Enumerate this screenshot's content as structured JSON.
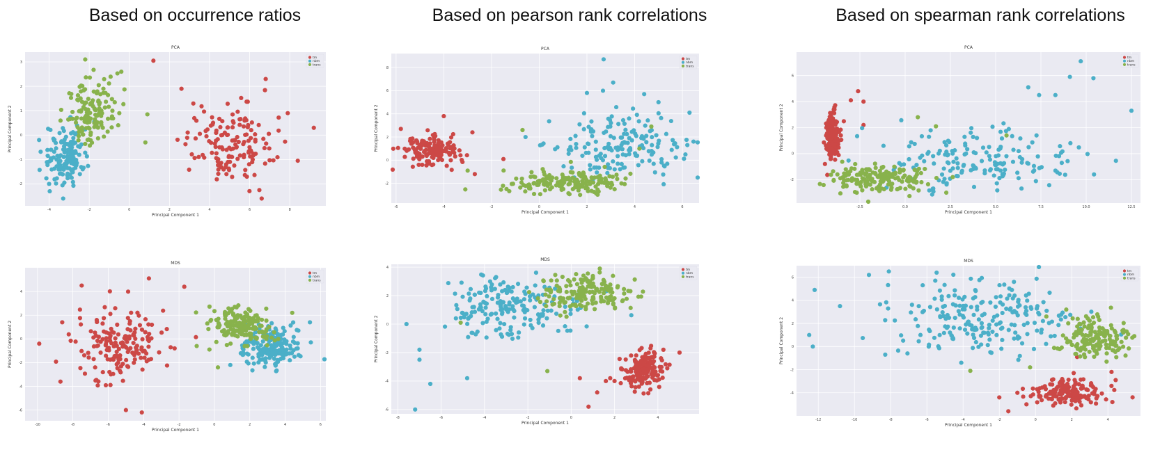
{
  "columns": [
    "Based on occurrence ratios",
    "Based on pearson rank correlations",
    "Based on spearman rank correlations"
  ],
  "colors": {
    "tm": "#cc4846",
    "nbm": "#4bafc8",
    "trans": "#88b24c",
    "plot_bg": "#eaeaf2",
    "grid": "#ffffff"
  },
  "chart_data": [
    {
      "type": "scatter",
      "title": "PCA",
      "xlabel": "Principal Component 1",
      "ylabel": "Principal Component 2",
      "xlim": [
        -5.2,
        9.8
      ],
      "ylim": [
        -2.9,
        3.4
      ],
      "xticks": [
        -4,
        -2,
        0,
        2,
        4,
        6,
        8
      ],
      "yticks": [
        -2,
        -1,
        0,
        1,
        2,
        3
      ],
      "legend": [
        "tm",
        "nbm",
        "trans"
      ],
      "legend_position": "top-right",
      "series": [
        {
          "name": "tm",
          "color": "#cc4846",
          "clusters": [
            {
              "cx": 4.9,
              "cy": -0.3,
              "sx": 1.1,
              "sy": 0.8,
              "n": 150
            }
          ],
          "points": [
            [
              1.2,
              3.05
            ],
            [
              2.6,
              1.9
            ],
            [
              6.6,
              -2.6
            ],
            [
              9.2,
              0.3
            ],
            [
              8.4,
              -1.05
            ],
            [
              7.9,
              0.9
            ],
            [
              6.8,
              2.3
            ]
          ]
        },
        {
          "name": "nbm",
          "color": "#4bafc8",
          "clusters": [
            {
              "cx": -3.1,
              "cy": -0.9,
              "sx": 0.5,
              "sy": 0.6,
              "n": 140
            }
          ],
          "points": [
            [
              -4.5,
              -0.2
            ],
            [
              -3.3,
              -2.6
            ],
            [
              -4.0,
              -2.0
            ]
          ]
        },
        {
          "name": "trans",
          "color": "#88b24c",
          "clusters": [
            {
              "cx": -1.9,
              "cy": 1.0,
              "sx": 0.65,
              "sy": 0.65,
              "n": 140
            }
          ],
          "points": [
            [
              -2.2,
              3.1
            ],
            [
              -0.5,
              0.9
            ],
            [
              0.8,
              -0.3
            ],
            [
              0.9,
              0.85
            ],
            [
              -0.4,
              2.6
            ]
          ]
        }
      ]
    },
    {
      "type": "scatter",
      "title": "PCA",
      "xlabel": "Principal Component 1",
      "ylabel": "Principal Component 2",
      "xlim": [
        -6.2,
        6.7
      ],
      "ylim": [
        -3.7,
        9.2
      ],
      "xticks": [
        -6,
        -4,
        -2,
        0,
        2,
        4,
        6
      ],
      "yticks": [
        -2,
        0,
        2,
        4,
        6,
        8
      ],
      "legend": [
        "tm",
        "nbm",
        "trans"
      ],
      "legend_position": "top-right",
      "series": [
        {
          "name": "tm",
          "color": "#cc4846",
          "clusters": [
            {
              "cx": -4.6,
              "cy": 0.8,
              "sx": 0.6,
              "sy": 0.6,
              "n": 150
            }
          ],
          "points": [
            [
              -5.8,
              2.7
            ],
            [
              -4.0,
              3.8
            ],
            [
              -2.8,
              2.4
            ],
            [
              -1.5,
              0.1
            ],
            [
              -2.7,
              -1.2
            ]
          ]
        },
        {
          "name": "nbm",
          "color": "#4bafc8",
          "clusters": [
            {
              "cx": 3.3,
              "cy": 1.2,
              "sx": 1.4,
              "sy": 1.3,
              "n": 170
            }
          ],
          "points": [
            [
              2.7,
              8.7
            ],
            [
              3.1,
              6.7
            ],
            [
              2.0,
              5.8
            ],
            [
              4.4,
              5.7
            ],
            [
              5.0,
              5.0
            ],
            [
              6.3,
              4.1
            ]
          ]
        },
        {
          "name": "trans",
          "color": "#88b24c",
          "clusters": [
            {
              "cx": 1.2,
              "cy": -1.9,
              "sx": 1.3,
              "sy": 0.5,
              "n": 180
            }
          ],
          "points": [
            [
              -0.7,
              2.6
            ],
            [
              -3.0,
              -0.9
            ],
            [
              4.2,
              1.0
            ],
            [
              4.7,
              2.9
            ]
          ]
        }
      ]
    },
    {
      "type": "scatter",
      "title": "PCA",
      "xlabel": "Principal Component 1",
      "ylabel": "Principal Component 2",
      "xlim": [
        -6.0,
        13.0
      ],
      "ylim": [
        -3.8,
        7.8
      ],
      "xticks": [
        -2.5,
        0.0,
        2.5,
        5.0,
        7.5,
        10.0,
        12.5
      ],
      "yticks": [
        -2,
        0,
        2,
        4,
        6
      ],
      "legend": [
        "tm",
        "nbm",
        "trans"
      ],
      "legend_position": "top-right",
      "series": [
        {
          "name": "tm",
          "color": "#cc4846",
          "clusters": [
            {
              "cx": -4.0,
              "cy": 1.5,
              "sx": 0.2,
              "sy": 0.9,
              "n": 150
            }
          ],
          "points": [
            [
              -2.6,
              4.8
            ],
            [
              -2.3,
              4.0
            ],
            [
              -2.3,
              2.2
            ],
            [
              -3.0,
              4.1
            ]
          ]
        },
        {
          "name": "nbm",
          "color": "#4bafc8",
          "clusters": [
            {
              "cx": 3.8,
              "cy": -0.5,
              "sx": 2.5,
              "sy": 1.1,
              "n": 170
            }
          ],
          "points": [
            [
              9.7,
              7.1
            ],
            [
              10.4,
              5.8
            ],
            [
              9.1,
              5.9
            ],
            [
              8.3,
              4.5
            ],
            [
              12.5,
              3.3
            ],
            [
              7.4,
              4.5
            ],
            [
              6.8,
              5.1
            ]
          ]
        },
        {
          "name": "trans",
          "color": "#88b24c",
          "clusters": [
            {
              "cx": -1.4,
              "cy": -1.9,
              "sx": 1.3,
              "sy": 0.55,
              "n": 170
            }
          ],
          "points": [
            [
              0.7,
              2.8
            ],
            [
              1.7,
              2.1
            ],
            [
              5.6,
              1.4
            ],
            [
              -2.0,
              -1.2
            ]
          ]
        }
      ]
    },
    {
      "type": "scatter",
      "title": "MDS",
      "xlabel": "Principal Component 1",
      "ylabel": "Principal Component 2",
      "xlim": [
        -10.7,
        6.3
      ],
      "ylim": [
        -6.9,
        6.0
      ],
      "xticks": [
        -10,
        -8,
        -6,
        -4,
        -2,
        0,
        2,
        4,
        6
      ],
      "yticks": [
        -6,
        -4,
        -2,
        0,
        2,
        4
      ],
      "legend": [
        "tm",
        "nbm",
        "trans"
      ],
      "legend_position": "top-right",
      "series": [
        {
          "name": "tm",
          "color": "#cc4846",
          "clusters": [
            {
              "cx": -5.4,
              "cy": -0.4,
              "sx": 1.3,
              "sy": 1.5,
              "n": 170
            }
          ],
          "points": [
            [
              -9.9,
              -0.4
            ],
            [
              -8.7,
              -3.6
            ],
            [
              -4.1,
              -6.2
            ],
            [
              -5.0,
              -6.0
            ],
            [
              -3.7,
              5.1
            ],
            [
              -1.7,
              4.4
            ],
            [
              -7.5,
              4.5
            ],
            [
              -8.6,
              1.4
            ]
          ]
        },
        {
          "name": "nbm",
          "color": "#4bafc8",
          "clusters": [
            {
              "cx": 3.2,
              "cy": -0.7,
              "sx": 0.9,
              "sy": 0.9,
              "n": 190
            }
          ],
          "points": [
            [
              5.4,
              1.4
            ],
            [
              0.9,
              -2.2
            ]
          ]
        },
        {
          "name": "trans",
          "color": "#88b24c",
          "clusters": [
            {
              "cx": 1.6,
              "cy": 1.1,
              "sx": 0.85,
              "sy": 0.7,
              "n": 190
            }
          ],
          "points": [
            [
              -1.0,
              -0.6
            ],
            [
              -0.4,
              1.3
            ],
            [
              0.2,
              -2.4
            ],
            [
              4.4,
              2.2
            ]
          ]
        }
      ]
    },
    {
      "type": "scatter",
      "title": "MDS",
      "xlabel": "Principal Component 1",
      "ylabel": "Principal Component 2",
      "xlim": [
        -8.3,
        5.9
      ],
      "ylim": [
        -6.3,
        4.2
      ],
      "xticks": [
        -8,
        -6,
        -4,
        -2,
        0,
        2,
        4
      ],
      "yticks": [
        -6,
        -4,
        -2,
        0,
        2,
        4
      ],
      "legend": [
        "tm",
        "nbm",
        "trans"
      ],
      "legend_position": "top-right",
      "series": [
        {
          "name": "tm",
          "color": "#cc4846",
          "clusters": [
            {
              "cx": 3.3,
              "cy": -3.3,
              "sx": 0.45,
              "sy": 0.7,
              "n": 160
            }
          ],
          "points": [
            [
              1.2,
              -4.8
            ],
            [
              0.8,
              -5.8
            ],
            [
              1.6,
              -4.0
            ],
            [
              2.0,
              -4.0
            ],
            [
              1.8,
              -3.8
            ],
            [
              3.0,
              -2.2
            ],
            [
              5.0,
              -2.0
            ],
            [
              0.4,
              -3.8
            ]
          ]
        },
        {
          "name": "nbm",
          "color": "#4bafc8",
          "clusters": [
            {
              "cx": -2.7,
              "cy": 1.2,
              "sx": 1.4,
              "sy": 1.1,
              "n": 190
            }
          ],
          "points": [
            [
              -7.2,
              -6.0
            ],
            [
              -6.5,
              -4.2
            ],
            [
              -7.0,
              -1.8
            ],
            [
              -7.0,
              -2.5
            ],
            [
              -7.6,
              0.0
            ],
            [
              -4.8,
              -3.8
            ]
          ]
        },
        {
          "name": "trans",
          "color": "#88b24c",
          "clusters": [
            {
              "cx": 0.5,
              "cy": 2.3,
              "sx": 1.0,
              "sy": 0.6,
              "n": 170
            }
          ],
          "points": [
            [
              -5.1,
              0.1
            ],
            [
              -1.1,
              -3.3
            ],
            [
              -0.5,
              0.6
            ]
          ]
        }
      ]
    },
    {
      "type": "scatter",
      "title": "MDS",
      "xlabel": "Principal Component 1",
      "ylabel": "Principal Component 2",
      "xlim": [
        -13.2,
        5.8
      ],
      "ylim": [
        -6.0,
        7.0
      ],
      "xticks": [
        -12,
        -10,
        -8,
        -6,
        -4,
        -2,
        0,
        2,
        4
      ],
      "yticks": [
        -4,
        -2,
        0,
        2,
        4,
        6
      ],
      "legend": [
        "tm",
        "nbm",
        "trans"
      ],
      "legend_position": "top-right",
      "series": [
        {
          "name": "tm",
          "color": "#cc4846",
          "clusters": [
            {
              "cx": 1.8,
              "cy": -3.9,
              "sx": 1.1,
              "sy": 0.55,
              "n": 160
            }
          ],
          "points": [
            [
              -1.5,
              -5.6
            ],
            [
              -0.5,
              -5.0
            ],
            [
              -2.0,
              -4.4
            ],
            [
              -1.0,
              -4.0
            ],
            [
              2.3,
              -0.9
            ],
            [
              4.2,
              -2.2
            ]
          ]
        },
        {
          "name": "nbm",
          "color": "#4bafc8",
          "clusters": [
            {
              "cx": -3.0,
              "cy": 2.4,
              "sx": 2.5,
              "sy": 1.5,
              "n": 220
            }
          ],
          "points": [
            [
              -12.5,
              1.0
            ],
            [
              -12.2,
              4.9
            ],
            [
              -12.3,
              0.0
            ],
            [
              -10.8,
              3.5
            ],
            [
              -9.2,
              6.2
            ],
            [
              -8.1,
              6.5
            ],
            [
              -8.3,
              -0.7
            ],
            [
              -4.1,
              -1.4
            ]
          ]
        },
        {
          "name": "trans",
          "color": "#88b24c",
          "clusters": [
            {
              "cx": 3.2,
              "cy": 0.8,
              "sx": 0.85,
              "sy": 1.0,
              "n": 170
            }
          ],
          "points": [
            [
              -0.3,
              -1.8
            ],
            [
              0.6,
              2.6
            ],
            [
              1.7,
              3.2
            ],
            [
              -3.6,
              -2.1
            ]
          ]
        }
      ]
    }
  ]
}
